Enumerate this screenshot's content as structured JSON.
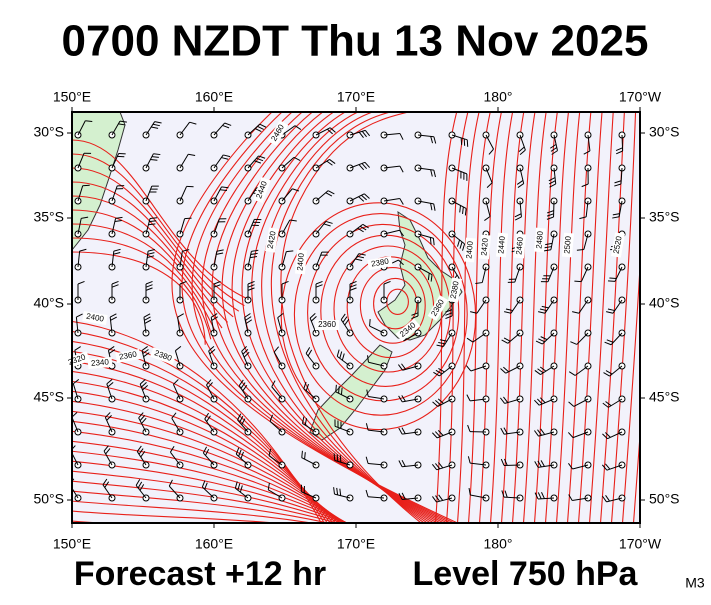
{
  "title": "0700 NZDT Thu 13 Nov 2025",
  "forecast": "Forecast +12 hr",
  "level": "Level 750 hPa",
  "code": "M3",
  "lon_labels": [
    "150°E",
    "160°E",
    "170°E",
    "180°",
    "170°W"
  ],
  "lat_labels": [
    "30°S",
    "35°S",
    "40°S",
    "45°S",
    "50°S"
  ],
  "contour_labels": [
    "2460",
    "2440",
    "2420",
    "2400",
    "2380",
    "2360",
    "2340",
    "2360",
    "2380",
    "2400",
    "2380",
    "2360",
    "2340",
    "2320",
    "2400",
    "2420",
    "2440",
    "2460",
    "2480",
    "2500",
    "2520"
  ]
}
